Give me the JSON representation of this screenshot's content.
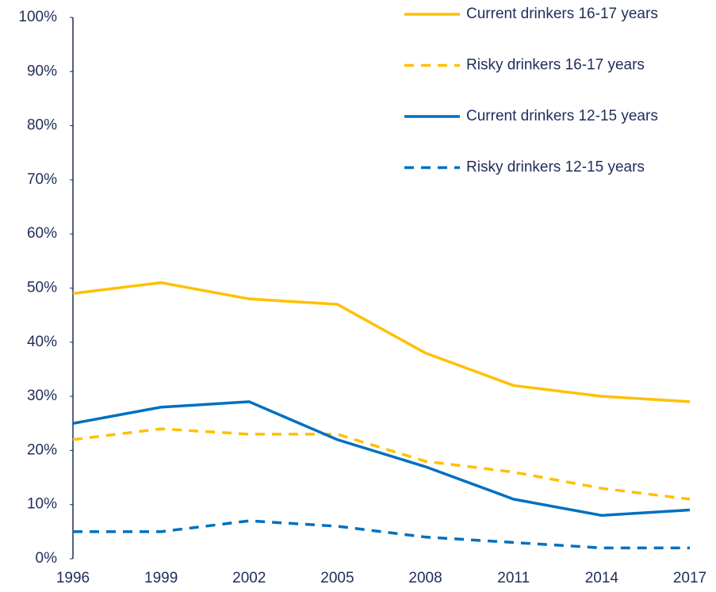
{
  "chart_data": {
    "type": "line",
    "x": [
      1996,
      1999,
      2002,
      2005,
      2008,
      2011,
      2014,
      2017
    ],
    "xlim": [
      1996,
      2017
    ],
    "xticks": [
      1996,
      1999,
      2002,
      2005,
      2008,
      2011,
      2014,
      2017
    ],
    "ylim": [
      0,
      100
    ],
    "yticks": [
      {
        "value": 0,
        "label": "0%"
      },
      {
        "value": 10,
        "label": "10%"
      },
      {
        "value": 20,
        "label": "20%"
      },
      {
        "value": 30,
        "label": "30%"
      },
      {
        "value": 40,
        "label": "40%"
      },
      {
        "value": 50,
        "label": "50%"
      },
      {
        "value": 60,
        "label": "60%"
      },
      {
        "value": 70,
        "label": "70%"
      },
      {
        "value": 80,
        "label": "80%"
      },
      {
        "value": 90,
        "label": "90%"
      },
      {
        "value": 100,
        "label": "100%"
      }
    ],
    "legend": "upper right",
    "series": [
      {
        "name": "Current drinkers 16-17 years",
        "color": "#ffc000",
        "style": "solid",
        "values": [
          49,
          51,
          48,
          47,
          38,
          32,
          30,
          29
        ]
      },
      {
        "name": "Risky drinkers 16-17 years",
        "color": "#ffc000",
        "style": "dashed",
        "values": [
          22,
          24,
          23,
          23,
          18,
          16,
          13,
          11
        ]
      },
      {
        "name": "Current drinkers 12-15 years",
        "color": "#0070c0",
        "style": "solid",
        "values": [
          25,
          28,
          29,
          22,
          17,
          11,
          8,
          9
        ]
      },
      {
        "name": "Risky drinkers 12-15 years",
        "color": "#0070c0",
        "style": "dashed",
        "values": [
          5,
          5,
          7,
          6,
          4,
          3,
          2,
          2
        ]
      }
    ]
  }
}
